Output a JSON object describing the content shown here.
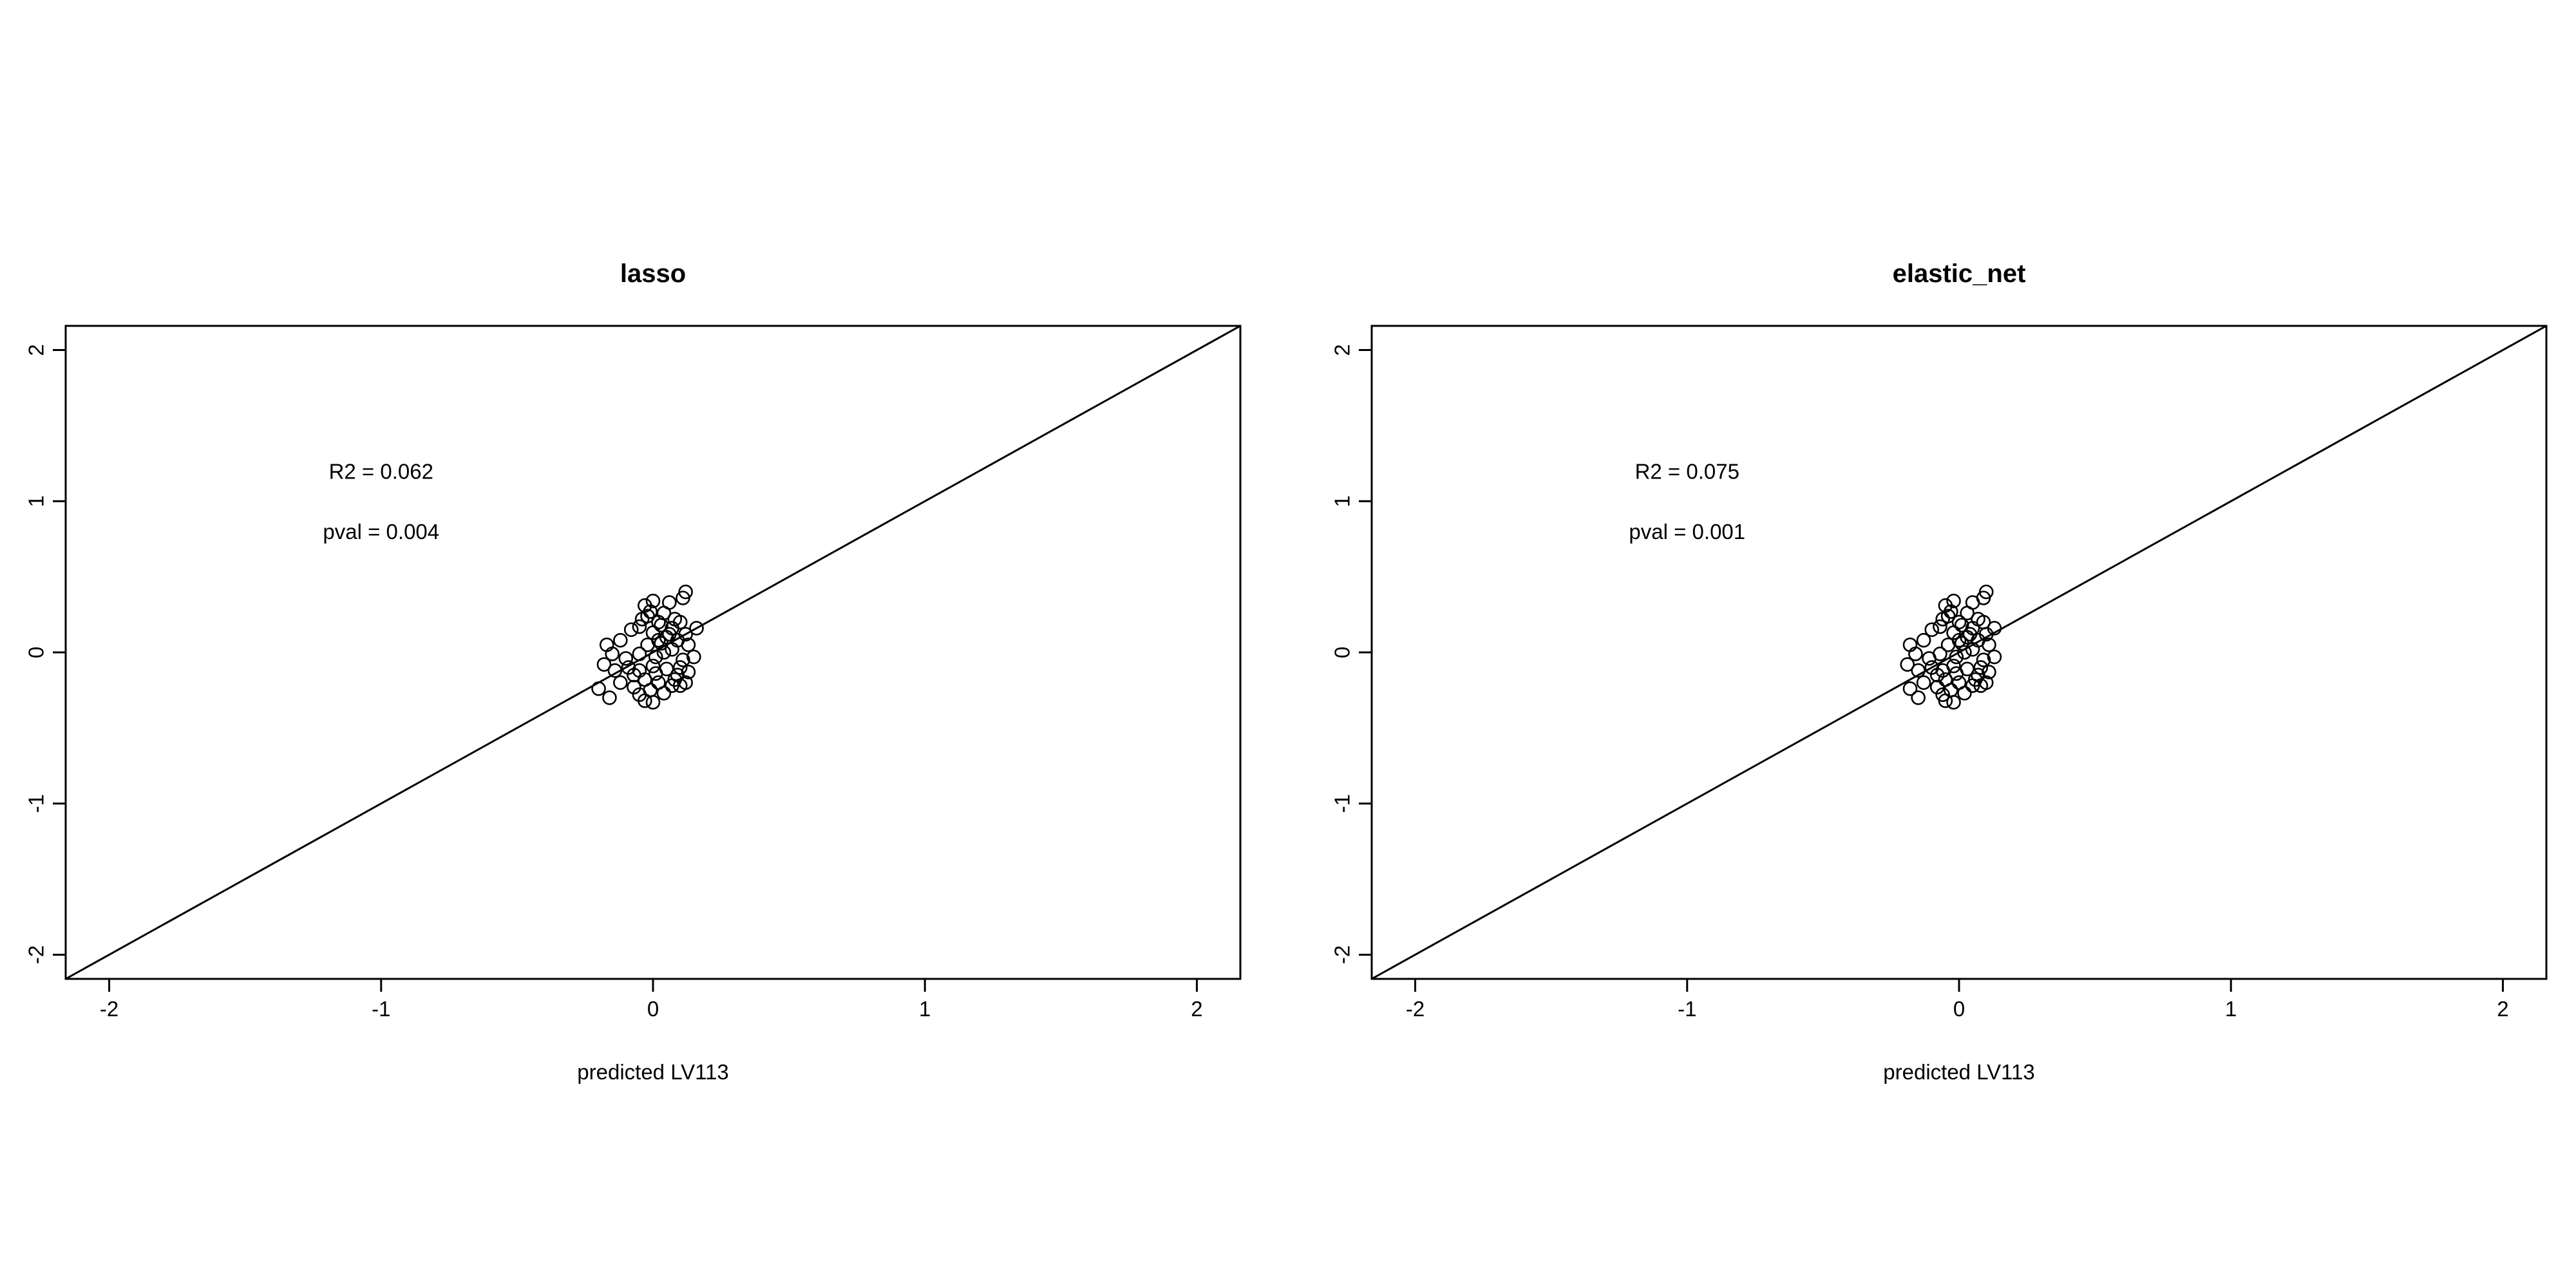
{
  "chart_data": [
    {
      "type": "scatter",
      "title": "lasso",
      "xlabel": "predicted LV113",
      "ylabel": "",
      "xlim": [
        -2.16,
        2.16
      ],
      "ylim": [
        -2.16,
        2.16
      ],
      "x_ticks": [
        "-2",
        "-1",
        "0",
        "1",
        "2"
      ],
      "y_ticks": [
        "-2",
        "-1",
        "0",
        "1",
        "2"
      ],
      "reference_line": {
        "intercept": 0,
        "slope": 1
      },
      "annotations": [
        {
          "text": "R2 = 0.062",
          "x": -1.0,
          "y": 1.2
        },
        {
          "text": "pval = 0.004",
          "x": -1.0,
          "y": 0.8
        }
      ],
      "points": [
        [
          0.06,
          0.33
        ],
        [
          0.12,
          0.4
        ],
        [
          0.11,
          0.36
        ],
        [
          0.0,
          0.34
        ],
        [
          -0.03,
          0.31
        ],
        [
          -0.01,
          0.27
        ],
        [
          0.04,
          0.26
        ],
        [
          0.08,
          0.22
        ],
        [
          0.1,
          0.2
        ],
        [
          -0.04,
          0.22
        ],
        [
          0.02,
          0.2
        ],
        [
          0.16,
          0.16
        ],
        [
          0.12,
          0.12
        ],
        [
          0.07,
          0.16
        ],
        [
          -0.05,
          0.17
        ],
        [
          -0.08,
          0.15
        ],
        [
          0.0,
          0.13
        ],
        [
          0.05,
          0.1
        ],
        [
          0.09,
          0.08
        ],
        [
          0.13,
          0.05
        ],
        [
          0.03,
          0.06
        ],
        [
          -0.02,
          0.05
        ],
        [
          0.07,
          0.02
        ],
        [
          0.15,
          -0.03
        ],
        [
          0.11,
          -0.05
        ],
        [
          0.01,
          -0.03
        ],
        [
          -0.05,
          -0.01
        ],
        [
          -0.1,
          -0.04
        ],
        [
          -0.15,
          -0.01
        ],
        [
          -0.17,
          0.05
        ],
        [
          -0.12,
          0.08
        ],
        [
          -0.18,
          -0.08
        ],
        [
          -0.14,
          -0.12
        ],
        [
          -0.09,
          -0.1
        ],
        [
          -0.05,
          -0.12
        ],
        [
          0.0,
          -0.09
        ],
        [
          0.05,
          -0.11
        ],
        [
          0.09,
          -0.15
        ],
        [
          0.13,
          -0.13
        ],
        [
          0.12,
          -0.2
        ],
        [
          0.07,
          -0.22
        ],
        [
          0.02,
          -0.2
        ],
        [
          -0.03,
          -0.18
        ],
        [
          -0.07,
          -0.23
        ],
        [
          -0.12,
          -0.2
        ],
        [
          -0.2,
          -0.24
        ],
        [
          -0.16,
          -0.3
        ],
        [
          -0.05,
          -0.28
        ],
        [
          0.0,
          -0.33
        ],
        [
          0.04,
          -0.27
        ],
        [
          -0.01,
          -0.25
        ],
        [
          0.08,
          -0.18
        ],
        [
          0.1,
          -0.1
        ],
        [
          0.04,
          0.0
        ],
        [
          0.02,
          0.08
        ],
        [
          0.06,
          0.12
        ],
        [
          -0.02,
          0.24
        ],
        [
          0.1,
          -0.22
        ],
        [
          -0.03,
          -0.32
        ],
        [
          0.03,
          0.18
        ],
        [
          -0.07,
          -0.15
        ],
        [
          0.01,
          -0.14
        ]
      ]
    },
    {
      "type": "scatter",
      "title": "elastic_net",
      "xlabel": "predicted LV113",
      "ylabel": "",
      "xlim": [
        -2.16,
        2.16
      ],
      "ylim": [
        -2.16,
        2.16
      ],
      "x_ticks": [
        "-2",
        "-1",
        "0",
        "1",
        "2"
      ],
      "y_ticks": [
        "-2",
        "-1",
        "0",
        "1",
        "2"
      ],
      "reference_line": {
        "intercept": 0,
        "slope": 1
      },
      "annotations": [
        {
          "text": "R2 = 0.075",
          "x": -1.0,
          "y": 1.2
        },
        {
          "text": "pval = 0.001",
          "x": -1.0,
          "y": 0.8
        }
      ],
      "points": [
        [
          0.05,
          0.33
        ],
        [
          0.1,
          0.4
        ],
        [
          0.09,
          0.36
        ],
        [
          -0.02,
          0.34
        ],
        [
          -0.05,
          0.31
        ],
        [
          -0.03,
          0.27
        ],
        [
          0.03,
          0.26
        ],
        [
          0.07,
          0.22
        ],
        [
          0.09,
          0.2
        ],
        [
          -0.06,
          0.22
        ],
        [
          0.0,
          0.2
        ],
        [
          0.13,
          0.16
        ],
        [
          0.1,
          0.12
        ],
        [
          0.05,
          0.16
        ],
        [
          -0.07,
          0.17
        ],
        [
          -0.1,
          0.15
        ],
        [
          -0.02,
          0.13
        ],
        [
          0.03,
          0.1
        ],
        [
          0.07,
          0.08
        ],
        [
          0.11,
          0.05
        ],
        [
          0.01,
          0.06
        ],
        [
          -0.04,
          0.05
        ],
        [
          0.05,
          0.02
        ],
        [
          0.13,
          -0.03
        ],
        [
          0.09,
          -0.05
        ],
        [
          -0.01,
          -0.03
        ],
        [
          -0.07,
          -0.01
        ],
        [
          -0.11,
          -0.04
        ],
        [
          -0.16,
          -0.01
        ],
        [
          -0.18,
          0.05
        ],
        [
          -0.13,
          0.08
        ],
        [
          -0.19,
          -0.08
        ],
        [
          -0.15,
          -0.12
        ],
        [
          -0.1,
          -0.1
        ],
        [
          -0.06,
          -0.12
        ],
        [
          -0.02,
          -0.09
        ],
        [
          0.03,
          -0.11
        ],
        [
          0.07,
          -0.15
        ],
        [
          0.11,
          -0.13
        ],
        [
          0.1,
          -0.2
        ],
        [
          0.05,
          -0.22
        ],
        [
          0.0,
          -0.2
        ],
        [
          -0.05,
          -0.18
        ],
        [
          -0.08,
          -0.23
        ],
        [
          -0.13,
          -0.2
        ],
        [
          -0.18,
          -0.24
        ],
        [
          -0.15,
          -0.3
        ],
        [
          -0.06,
          -0.28
        ],
        [
          -0.02,
          -0.33
        ],
        [
          0.02,
          -0.27
        ],
        [
          -0.03,
          -0.25
        ],
        [
          0.06,
          -0.18
        ],
        [
          0.08,
          -0.1
        ],
        [
          0.02,
          0.0
        ],
        [
          0.0,
          0.08
        ],
        [
          0.04,
          0.12
        ],
        [
          -0.04,
          0.24
        ],
        [
          0.08,
          -0.22
        ],
        [
          -0.05,
          -0.32
        ],
        [
          0.01,
          0.18
        ],
        [
          -0.08,
          -0.15
        ],
        [
          -0.01,
          -0.14
        ]
      ]
    }
  ]
}
